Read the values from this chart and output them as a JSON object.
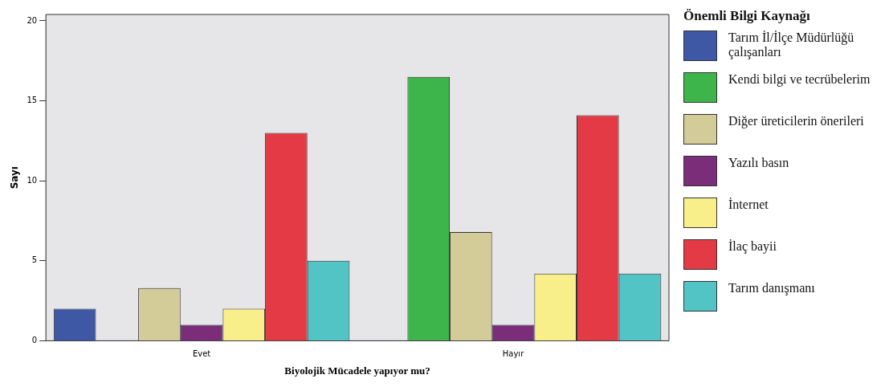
{
  "chart_data": {
    "type": "bar",
    "xlabel": "Biyolojik Mücadele yapıyor mu?",
    "ylabel": "Sayı",
    "legend_title": "Önemli Bilgi Kaynağı",
    "categories": [
      "Evet",
      "Hayır"
    ],
    "series": [
      {
        "name": "Tarım İl/İlçe Müdürlüğü çalışanları",
        "color": "#3f58a6",
        "values": [
          2,
          null
        ]
      },
      {
        "name": "Kendi bilgi ve tecrübelerim",
        "color": "#3db54a",
        "values": [
          null,
          16.5
        ]
      },
      {
        "name": "Diğer üreticilerin önerileri",
        "color": "#d3cb98",
        "values": [
          3.3,
          6.8
        ]
      },
      {
        "name": "Yazılı basın",
        "color": "#7b2d7a",
        "values": [
          1,
          1
        ]
      },
      {
        "name": "İnternet",
        "color": "#f8ef8a",
        "values": [
          2,
          4.2
        ]
      },
      {
        "name": "İlaç bayii",
        "color": "#e43a45",
        "values": [
          13,
          14.1
        ]
      },
      {
        "name": "Tarım danışmanı",
        "color": "#52c4c6",
        "values": [
          5,
          4.2
        ]
      }
    ],
    "ylim": [
      0,
      20.4
    ],
    "yticks": [
      0,
      5,
      10,
      15,
      20
    ],
    "grid": false,
    "legend": "right"
  }
}
